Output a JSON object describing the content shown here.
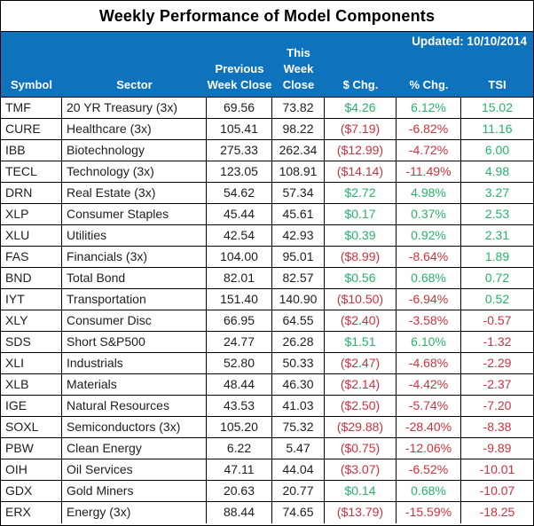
{
  "title": "Weekly Performance of Model Components",
  "updated": "Updated: 10/10/2014",
  "colors": {
    "header-bg": "#0e72bd",
    "positive": "#2bb06a",
    "negative": "#c9333e",
    "grid": "#000000",
    "text": "#1d1d1d"
  },
  "chart_data": {
    "type": "table",
    "title": "Weekly Performance of Model Components",
    "updated": "Updated: 10/10/2014",
    "columns": [
      "Symbol",
      "Sector",
      "Previous Week Close",
      "This Week Close",
      "$ Chg.",
      "% Chg.",
      "TSI"
    ],
    "rows": [
      [
        "TMF",
        "20 YR Treasury (3x)",
        "69.56",
        "73.82",
        "$4.26",
        "6.12%",
        "15.02"
      ],
      [
        "CURE",
        "Healthcare (3x)",
        "105.41",
        "98.22",
        "($7.19)",
        "-6.82%",
        "11.16"
      ],
      [
        "IBB",
        "Biotechnology",
        "275.33",
        "262.34",
        "($12.99)",
        "-4.72%",
        "6.00"
      ],
      [
        "TECL",
        "Technology (3x)",
        "123.05",
        "108.91",
        "($14.14)",
        "-11.49%",
        "4.98"
      ],
      [
        "DRN",
        "Real Estate (3x)",
        "54.62",
        "57.34",
        "$2.72",
        "4.98%",
        "3.27"
      ],
      [
        "XLP",
        "Consumer Staples",
        "45.44",
        "45.61",
        "$0.17",
        "0.37%",
        "2.53"
      ],
      [
        "XLU",
        "Utilities",
        "42.54",
        "42.93",
        "$0.39",
        "0.92%",
        "2.31"
      ],
      [
        "FAS",
        "Financials (3x)",
        "104.00",
        "95.01",
        "($8.99)",
        "-8.64%",
        "1.89"
      ],
      [
        "BND",
        "Total Bond",
        "82.01",
        "82.57",
        "$0.56",
        "0.68%",
        "0.72"
      ],
      [
        "IYT",
        "Transportation",
        "151.40",
        "140.90",
        "($10.50)",
        "-6.94%",
        "0.52"
      ],
      [
        "XLY",
        "Consumer Disc",
        "66.95",
        "64.55",
        "($2.40)",
        "-3.58%",
        "-0.57"
      ],
      [
        "SDS",
        "Short S&P500",
        "24.77",
        "26.28",
        "$1.51",
        "6.10%",
        "-1.32"
      ],
      [
        "XLI",
        "Industrials",
        "52.80",
        "50.33",
        "($2.47)",
        "-4.68%",
        "-2.29"
      ],
      [
        "XLB",
        "Materials",
        "48.44",
        "46.30",
        "($2.14)",
        "-4.42%",
        "-2.37"
      ],
      [
        "IGE",
        "Natural Resources",
        "43.53",
        "41.03",
        "($2.50)",
        "-5.74%",
        "-7.20"
      ],
      [
        "SOXL",
        "Semiconductors (3x)",
        "105.20",
        "75.32",
        "($29.88)",
        "-28.40%",
        "-8.38"
      ],
      [
        "PBW",
        "Clean Energy",
        "6.22",
        "5.47",
        "($0.75)",
        "-12.06%",
        "-9.89"
      ],
      [
        "OIH",
        "Oil Services",
        "47.11",
        "44.04",
        "($3.07)",
        "-6.52%",
        "-10.01"
      ],
      [
        "GDX",
        "Gold Miners",
        "20.63",
        "20.77",
        "$0.14",
        "0.68%",
        "-10.07"
      ],
      [
        "ERX",
        "Energy (3x)",
        "88.44",
        "74.65",
        "($13.79)",
        "-15.59%",
        "-18.25"
      ]
    ]
  }
}
